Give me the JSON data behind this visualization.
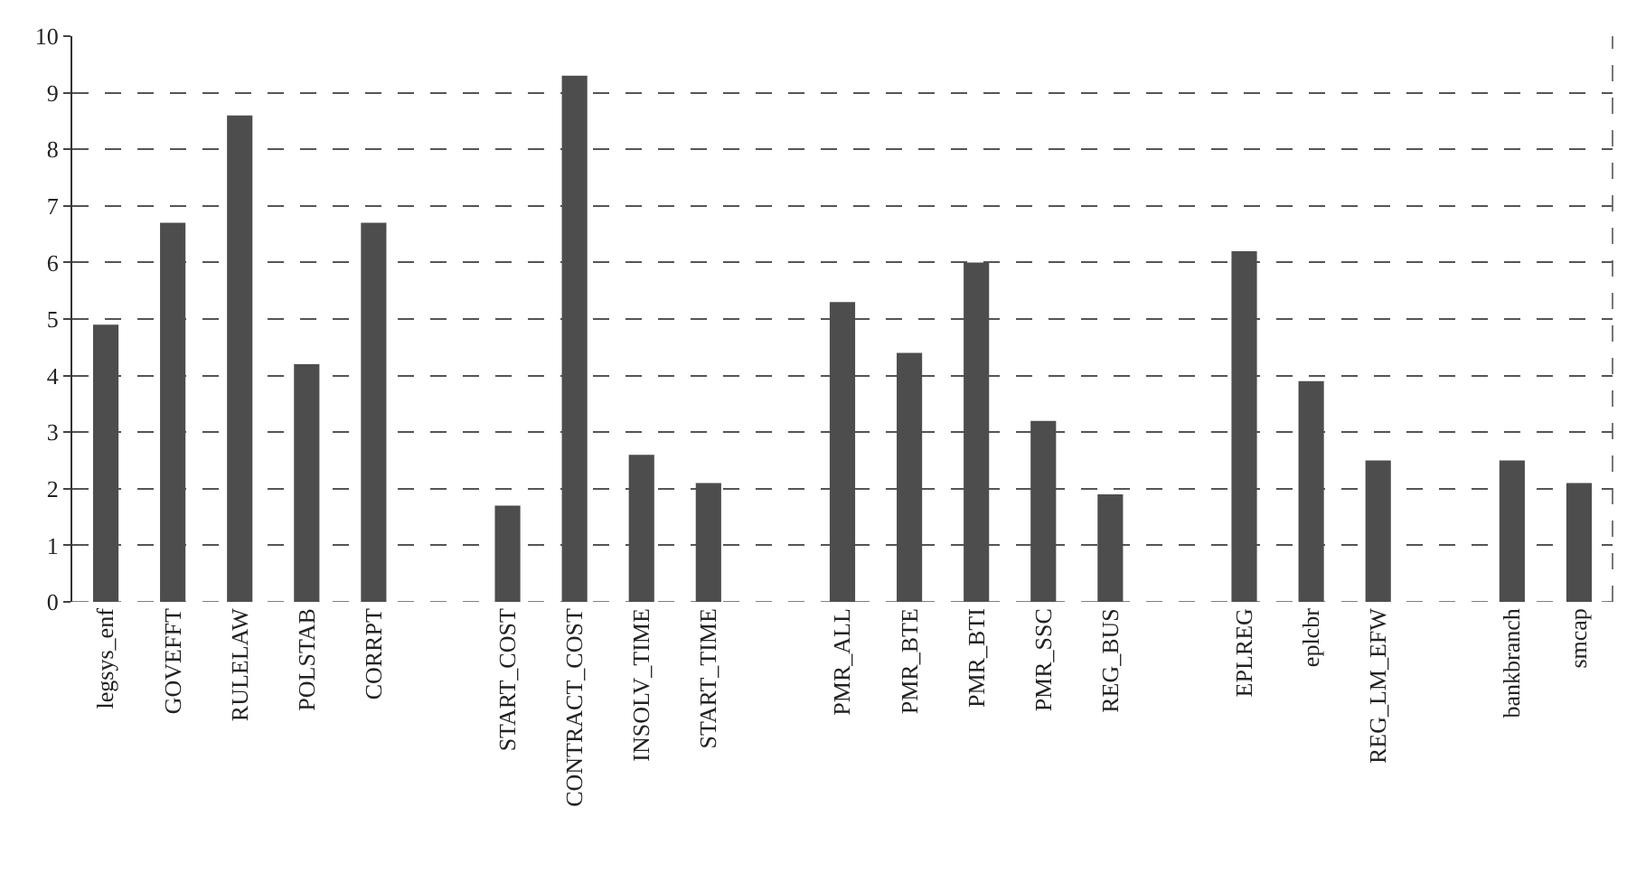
{
  "chart_data": {
    "type": "bar",
    "categories": [
      "legsys_enf",
      "GOVEFFT",
      "RULELAW",
      "POLSTAB",
      "CORRPT",
      null,
      "START_COST",
      "CONTRACT_COST",
      "INSOLV_TIME",
      "START_TIME",
      null,
      "PMR_ALL",
      "PMR_BTE",
      "PMR_BTI",
      "PMR_SSC",
      "REG_BUS",
      null,
      "EPLREG",
      "eplcbr",
      "REG_LM_EFW",
      null,
      "bankbranch",
      "smcap"
    ],
    "values": [
      4.9,
      6.7,
      8.6,
      4.2,
      6.7,
      null,
      1.7,
      9.3,
      2.6,
      2.1,
      null,
      5.3,
      4.4,
      6.0,
      3.2,
      1.9,
      null,
      6.2,
      3.9,
      2.5,
      null,
      2.5,
      2.1
    ],
    "color": "#4d4d4d",
    "ylim": [
      0,
      10
    ],
    "yticks": [
      0,
      1,
      2,
      3,
      4,
      5,
      6,
      7,
      8,
      9,
      10
    ],
    "grid": "y",
    "legend": false
  }
}
